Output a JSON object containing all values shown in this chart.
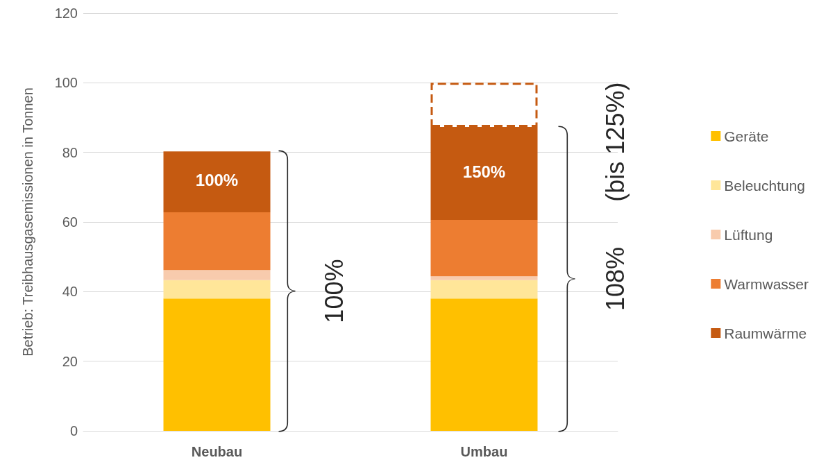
{
  "chart_data": {
    "type": "bar",
    "stacked": true,
    "ylabel": "Betrieb: Treibhausgasemissionen in Tonnen",
    "categories": [
      "Neubau",
      "Umbau"
    ],
    "series": [
      {
        "name": "Geräte",
        "color": "#ffc000",
        "values": [
          38,
          38
        ]
      },
      {
        "name": "Beleuchtung",
        "color": "#ffe699",
        "values": [
          5.3,
          5.3
        ]
      },
      {
        "name": "Lüftung",
        "color": "#f8cbad",
        "values": [
          2.9,
          1.1
        ]
      },
      {
        "name": "Warmwasser",
        "color": "#ed7d31",
        "values": [
          16.6,
          16.2
        ]
      },
      {
        "name": "Raumwärme",
        "color": "#c55a11",
        "values": [
          17.5,
          26.7
        ]
      },
      {
        "color": "#c55a11",
        "line_style": "dashed",
        "values": [
          null,
          12.7
        ]
      }
    ],
    "ylim": [
      0,
      120
    ],
    "yticks": [
      0,
      20,
      40,
      60,
      80,
      100,
      120
    ],
    "grid": "y",
    "legend": "right",
    "annotations": [
      "100%",
      "150%",
      "100%",
      "108%",
      "(bis 125%)"
    ]
  }
}
